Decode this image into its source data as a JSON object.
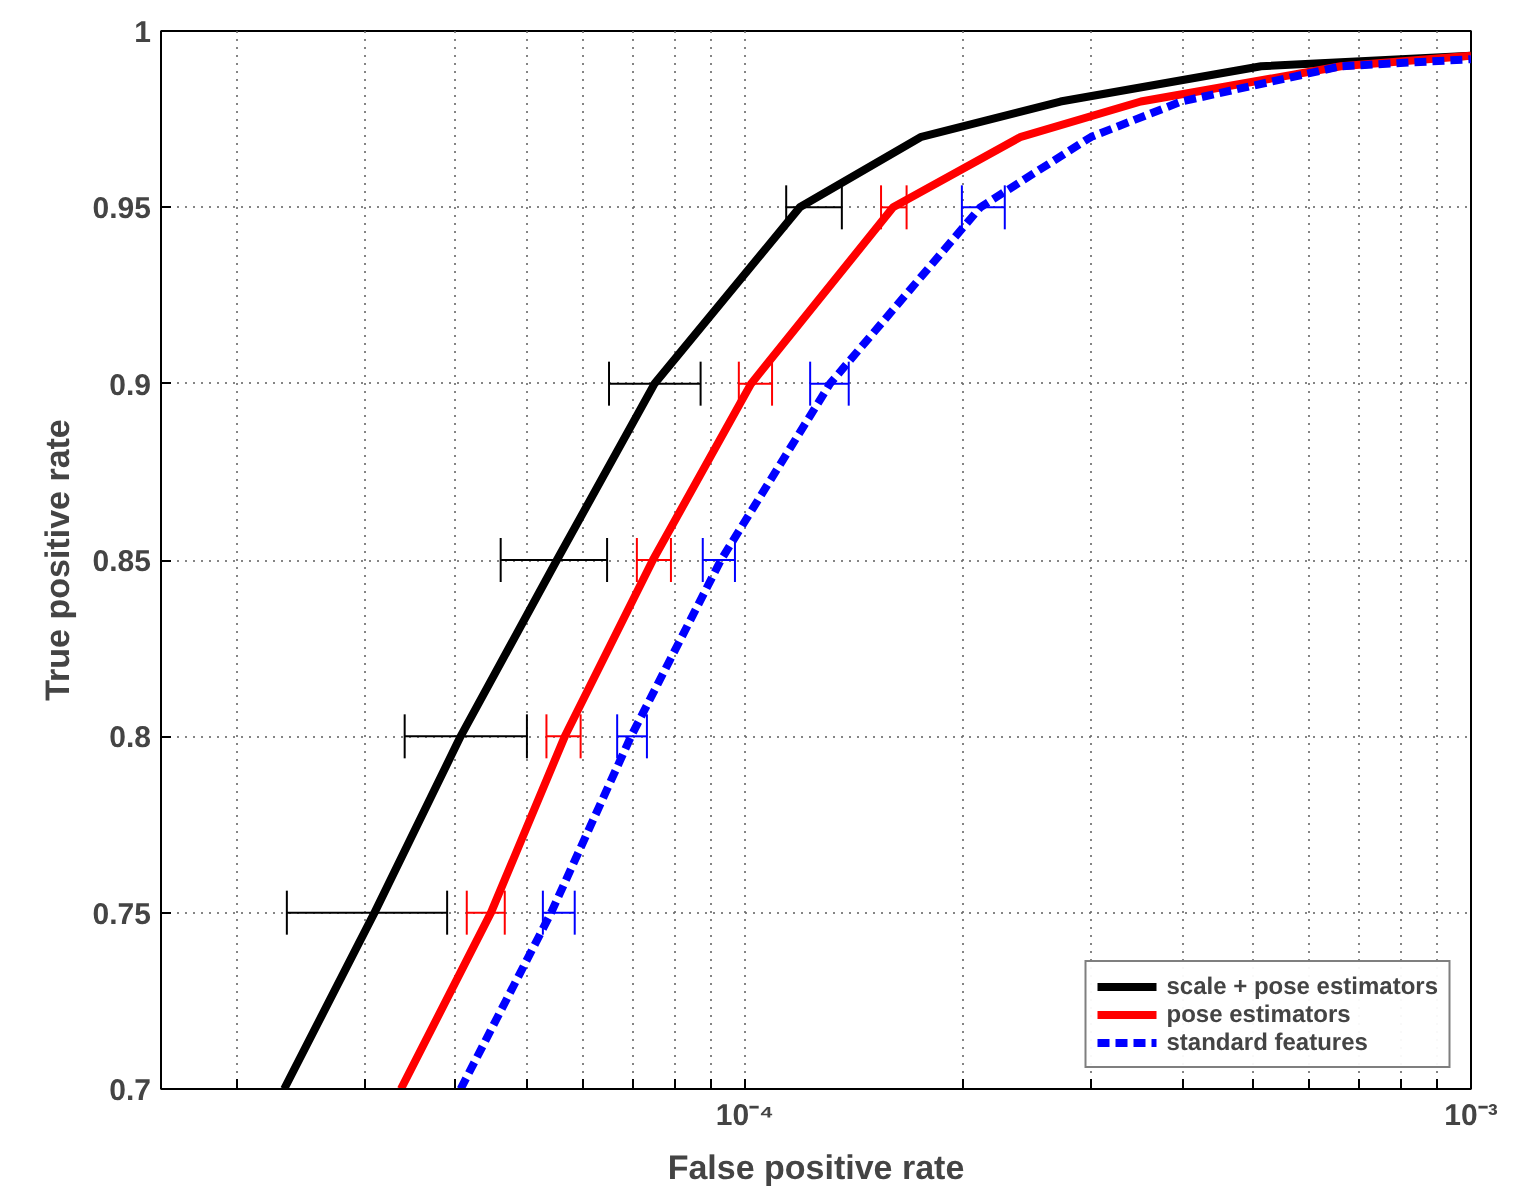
{
  "chart_data": {
    "type": "line",
    "xlabel": "False positive rate",
    "ylabel": "True positive rate",
    "log": "x",
    "xlim": [
      1.57e-05,
      0.001
    ],
    "ylim": [
      0.7,
      1
    ],
    "xticks": [
      {
        "value": 2e-05,
        "label": null
      },
      {
        "value": 3e-05,
        "label": null
      },
      {
        "value": 4e-05,
        "label": null
      },
      {
        "value": 5e-05,
        "label": null
      },
      {
        "value": 6e-05,
        "label": null
      },
      {
        "value": 7e-05,
        "label": null
      },
      {
        "value": 8e-05,
        "label": null
      },
      {
        "value": 9e-05,
        "label": null
      },
      {
        "value": 0.0001,
        "label": "10⁻⁴"
      },
      {
        "value": 0.0002,
        "label": null
      },
      {
        "value": 0.0003,
        "label": null
      },
      {
        "value": 0.0004,
        "label": null
      },
      {
        "value": 0.0005,
        "label": null
      },
      {
        "value": 0.0006,
        "label": null
      },
      {
        "value": 0.0007,
        "label": null
      },
      {
        "value": 0.0008,
        "label": null
      },
      {
        "value": 0.0009,
        "label": null
      },
      {
        "value": 0.001,
        "label": "10⁻³"
      }
    ],
    "yticks": [
      0.7,
      0.75,
      0.8,
      0.85,
      0.9,
      0.95,
      1
    ],
    "grid": true,
    "legend": "bottom right",
    "marker": "none",
    "series": [
      {
        "name": "scale + pose estimators",
        "color": "#000000",
        "line_style": "solid",
        "x": [
          2.32e-05,
          3.09e-05,
          4.06e-05,
          5.51e-05,
          7.51e-05,
          0.000119,
          0.000175,
          0.000272,
          0.000514,
          0.001
        ],
        "values": [
          0.7,
          0.75,
          0.8,
          0.85,
          0.9,
          0.95,
          0.97,
          0.98,
          0.99,
          0.993
        ],
        "xerrors": [
          null,
          [
            2.34e-05,
            3.89e-05
          ],
          [
            3.4e-05,
            5.01e-05
          ],
          [
            4.61e-05,
            6.46e-05
          ],
          [
            6.5e-05,
            8.69e-05
          ],
          [
            0.000114,
            0.000136
          ],
          null,
          null,
          null,
          null
        ]
      },
      {
        "name": "pose estimators",
        "color": "#ff0000",
        "line_style": "solid",
        "x": [
          3.36e-05,
          4.47e-05,
          5.65e-05,
          7.47e-05,
          0.000102,
          0.00016,
          0.00024,
          0.000351,
          0.000662,
          0.001
        ],
        "values": [
          0.7,
          0.75,
          0.8,
          0.85,
          0.9,
          0.95,
          0.97,
          0.98,
          0.99,
          0.993
        ],
        "xerrors": [
          null,
          [
            4.14e-05,
            4.67e-05
          ],
          [
            5.33e-05,
            5.94e-05
          ],
          [
            7.1e-05,
            7.91e-05
          ],
          [
            9.81e-05,
            0.000109
          ],
          [
            0.000154,
            0.000167
          ],
          null,
          null,
          null,
          null
        ]
      },
      {
        "name": "standard features",
        "color": "#0000ff",
        "line_style": "dashed",
        "x": [
          4.06e-05,
          5.41e-05,
          6.97e-05,
          9.27e-05,
          0.000131,
          0.000211,
          0.0003,
          0.000399,
          0.000662,
          0.001
        ],
        "values": [
          0.7,
          0.75,
          0.8,
          0.85,
          0.9,
          0.95,
          0.97,
          0.98,
          0.99,
          0.992
        ],
        "xerrors": [
          null,
          [
            5.27e-05,
            5.83e-05
          ],
          [
            6.67e-05,
            7.33e-05
          ],
          [
            8.75e-05,
            9.69e-05
          ],
          [
            0.000123,
            0.000139
          ],
          [
            0.000199,
            0.000228
          ],
          null,
          null,
          null,
          null
        ]
      }
    ]
  }
}
